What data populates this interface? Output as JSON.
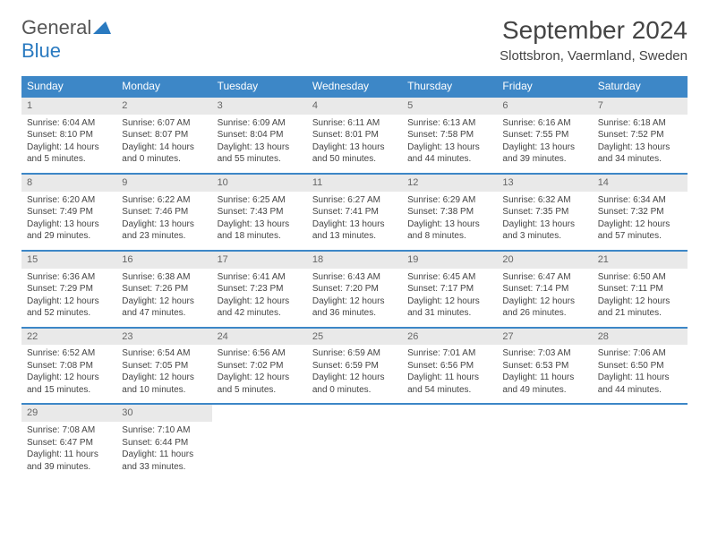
{
  "brand": {
    "part1": "General",
    "part2": "Blue"
  },
  "title": "September 2024",
  "location": "Slottsbron, Vaermland, Sweden",
  "colors": {
    "header_bg": "#3d87c7",
    "header_text": "#ffffff",
    "daynum_bg": "#e9e9e9",
    "border": "#3d87c7",
    "brand_blue": "#2a7ac0"
  },
  "weekdays": [
    "Sunday",
    "Monday",
    "Tuesday",
    "Wednesday",
    "Thursday",
    "Friday",
    "Saturday"
  ],
  "days": [
    {
      "n": "1",
      "sunrise": "Sunrise: 6:04 AM",
      "sunset": "Sunset: 8:10 PM",
      "daylight": "Daylight: 14 hours and 5 minutes."
    },
    {
      "n": "2",
      "sunrise": "Sunrise: 6:07 AM",
      "sunset": "Sunset: 8:07 PM",
      "daylight": "Daylight: 14 hours and 0 minutes."
    },
    {
      "n": "3",
      "sunrise": "Sunrise: 6:09 AM",
      "sunset": "Sunset: 8:04 PM",
      "daylight": "Daylight: 13 hours and 55 minutes."
    },
    {
      "n": "4",
      "sunrise": "Sunrise: 6:11 AM",
      "sunset": "Sunset: 8:01 PM",
      "daylight": "Daylight: 13 hours and 50 minutes."
    },
    {
      "n": "5",
      "sunrise": "Sunrise: 6:13 AM",
      "sunset": "Sunset: 7:58 PM",
      "daylight": "Daylight: 13 hours and 44 minutes."
    },
    {
      "n": "6",
      "sunrise": "Sunrise: 6:16 AM",
      "sunset": "Sunset: 7:55 PM",
      "daylight": "Daylight: 13 hours and 39 minutes."
    },
    {
      "n": "7",
      "sunrise": "Sunrise: 6:18 AM",
      "sunset": "Sunset: 7:52 PM",
      "daylight": "Daylight: 13 hours and 34 minutes."
    },
    {
      "n": "8",
      "sunrise": "Sunrise: 6:20 AM",
      "sunset": "Sunset: 7:49 PM",
      "daylight": "Daylight: 13 hours and 29 minutes."
    },
    {
      "n": "9",
      "sunrise": "Sunrise: 6:22 AM",
      "sunset": "Sunset: 7:46 PM",
      "daylight": "Daylight: 13 hours and 23 minutes."
    },
    {
      "n": "10",
      "sunrise": "Sunrise: 6:25 AM",
      "sunset": "Sunset: 7:43 PM",
      "daylight": "Daylight: 13 hours and 18 minutes."
    },
    {
      "n": "11",
      "sunrise": "Sunrise: 6:27 AM",
      "sunset": "Sunset: 7:41 PM",
      "daylight": "Daylight: 13 hours and 13 minutes."
    },
    {
      "n": "12",
      "sunrise": "Sunrise: 6:29 AM",
      "sunset": "Sunset: 7:38 PM",
      "daylight": "Daylight: 13 hours and 8 minutes."
    },
    {
      "n": "13",
      "sunrise": "Sunrise: 6:32 AM",
      "sunset": "Sunset: 7:35 PM",
      "daylight": "Daylight: 13 hours and 3 minutes."
    },
    {
      "n": "14",
      "sunrise": "Sunrise: 6:34 AM",
      "sunset": "Sunset: 7:32 PM",
      "daylight": "Daylight: 12 hours and 57 minutes."
    },
    {
      "n": "15",
      "sunrise": "Sunrise: 6:36 AM",
      "sunset": "Sunset: 7:29 PM",
      "daylight": "Daylight: 12 hours and 52 minutes."
    },
    {
      "n": "16",
      "sunrise": "Sunrise: 6:38 AM",
      "sunset": "Sunset: 7:26 PM",
      "daylight": "Daylight: 12 hours and 47 minutes."
    },
    {
      "n": "17",
      "sunrise": "Sunrise: 6:41 AM",
      "sunset": "Sunset: 7:23 PM",
      "daylight": "Daylight: 12 hours and 42 minutes."
    },
    {
      "n": "18",
      "sunrise": "Sunrise: 6:43 AM",
      "sunset": "Sunset: 7:20 PM",
      "daylight": "Daylight: 12 hours and 36 minutes."
    },
    {
      "n": "19",
      "sunrise": "Sunrise: 6:45 AM",
      "sunset": "Sunset: 7:17 PM",
      "daylight": "Daylight: 12 hours and 31 minutes."
    },
    {
      "n": "20",
      "sunrise": "Sunrise: 6:47 AM",
      "sunset": "Sunset: 7:14 PM",
      "daylight": "Daylight: 12 hours and 26 minutes."
    },
    {
      "n": "21",
      "sunrise": "Sunrise: 6:50 AM",
      "sunset": "Sunset: 7:11 PM",
      "daylight": "Daylight: 12 hours and 21 minutes."
    },
    {
      "n": "22",
      "sunrise": "Sunrise: 6:52 AM",
      "sunset": "Sunset: 7:08 PM",
      "daylight": "Daylight: 12 hours and 15 minutes."
    },
    {
      "n": "23",
      "sunrise": "Sunrise: 6:54 AM",
      "sunset": "Sunset: 7:05 PM",
      "daylight": "Daylight: 12 hours and 10 minutes."
    },
    {
      "n": "24",
      "sunrise": "Sunrise: 6:56 AM",
      "sunset": "Sunset: 7:02 PM",
      "daylight": "Daylight: 12 hours and 5 minutes."
    },
    {
      "n": "25",
      "sunrise": "Sunrise: 6:59 AM",
      "sunset": "Sunset: 6:59 PM",
      "daylight": "Daylight: 12 hours and 0 minutes."
    },
    {
      "n": "26",
      "sunrise": "Sunrise: 7:01 AM",
      "sunset": "Sunset: 6:56 PM",
      "daylight": "Daylight: 11 hours and 54 minutes."
    },
    {
      "n": "27",
      "sunrise": "Sunrise: 7:03 AM",
      "sunset": "Sunset: 6:53 PM",
      "daylight": "Daylight: 11 hours and 49 minutes."
    },
    {
      "n": "28",
      "sunrise": "Sunrise: 7:06 AM",
      "sunset": "Sunset: 6:50 PM",
      "daylight": "Daylight: 11 hours and 44 minutes."
    },
    {
      "n": "29",
      "sunrise": "Sunrise: 7:08 AM",
      "sunset": "Sunset: 6:47 PM",
      "daylight": "Daylight: 11 hours and 39 minutes."
    },
    {
      "n": "30",
      "sunrise": "Sunrise: 7:10 AM",
      "sunset": "Sunset: 6:44 PM",
      "daylight": "Daylight: 11 hours and 33 minutes."
    }
  ]
}
